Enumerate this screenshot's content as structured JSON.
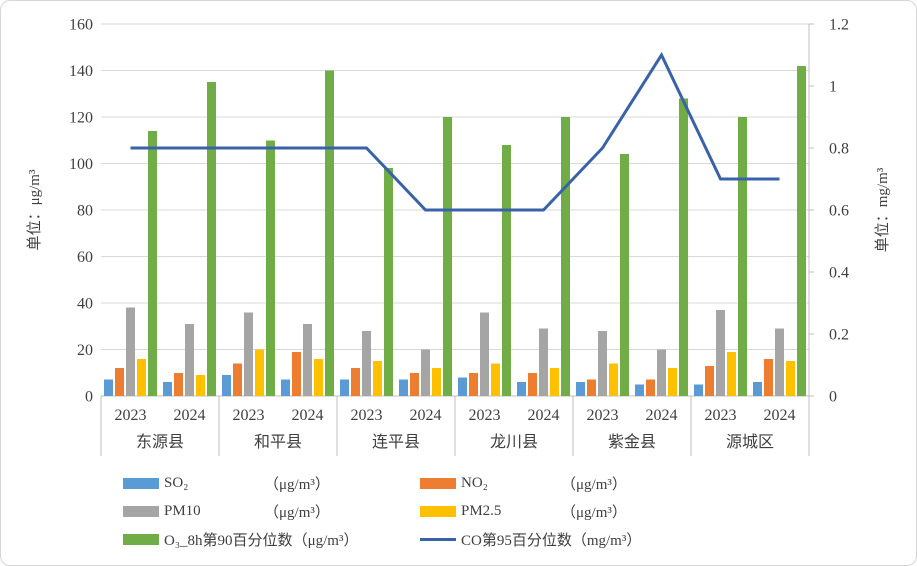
{
  "chart_data": {
    "type": "bar+line combo",
    "title": "",
    "counties": [
      "东源县",
      "和平县",
      "连平县",
      "龙川县",
      "紫金县",
      "源城区"
    ],
    "years": [
      "2023",
      "2024"
    ],
    "left_axis": {
      "title": "单位：μg/m³",
      "min": 0,
      "max": 160,
      "step": 20,
      "ticks": [
        "0",
        "20",
        "40",
        "60",
        "80",
        "100",
        "120",
        "140",
        "160"
      ]
    },
    "right_axis": {
      "title": "单位：mg/m³",
      "min": 0,
      "max": 1.2,
      "step": 0.2,
      "ticks": [
        "0",
        "0.2",
        "0.4",
        "0.6",
        "0.8",
        "1",
        "1.2"
      ]
    },
    "grid": true,
    "legend_position": "bottom",
    "series": [
      {
        "slug": "so2",
        "name": "SO₂",
        "unit": "（μg/m³）",
        "type": "bar",
        "axis": "left",
        "color": "#5b9bd5",
        "values": [
          7,
          6,
          9,
          7,
          7,
          7,
          8,
          6,
          6,
          5,
          5,
          6
        ]
      },
      {
        "slug": "no2",
        "name": "NO₂",
        "unit": "（μg/m³）",
        "type": "bar",
        "axis": "left",
        "color": "#ed7d31",
        "values": [
          12,
          10,
          14,
          19,
          12,
          10,
          10,
          10,
          7,
          7,
          13,
          16
        ]
      },
      {
        "slug": "pm10",
        "name": "PM10",
        "unit": "（μg/m³）",
        "type": "bar",
        "axis": "left",
        "color": "#a5a5a5",
        "values": [
          38,
          31,
          36,
          31,
          28,
          20,
          36,
          29,
          28,
          20,
          37,
          29
        ]
      },
      {
        "slug": "pm2-5",
        "name": "PM2.5",
        "unit": "（μg/m³）",
        "type": "bar",
        "axis": "left",
        "color": "#ffc000",
        "values": [
          16,
          9,
          20,
          16,
          15,
          12,
          14,
          12,
          14,
          12,
          19,
          15
        ]
      },
      {
        "slug": "o3-8h-p90",
        "name": "O₃_8h第90百分位数",
        "unit": "（μg/m³）",
        "type": "bar",
        "axis": "left",
        "color": "#70ad47",
        "values": [
          114,
          135,
          110,
          140,
          98,
          120,
          108,
          120,
          104,
          128,
          120,
          142
        ]
      },
      {
        "slug": "co-p95",
        "name": "CO第95百分位数",
        "unit": "（mg/m³）",
        "type": "line",
        "axis": "right",
        "color": "#3a62a8",
        "values": [
          0.8,
          0.8,
          0.8,
          0.8,
          0.8,
          0.6,
          0.6,
          0.6,
          0.8,
          1.1,
          0.7,
          0.7
        ]
      }
    ],
    "colors": {
      "gridline": "#d9d9d9",
      "axis_line": "#bfbfbf",
      "text": "#3f3f3f"
    }
  }
}
